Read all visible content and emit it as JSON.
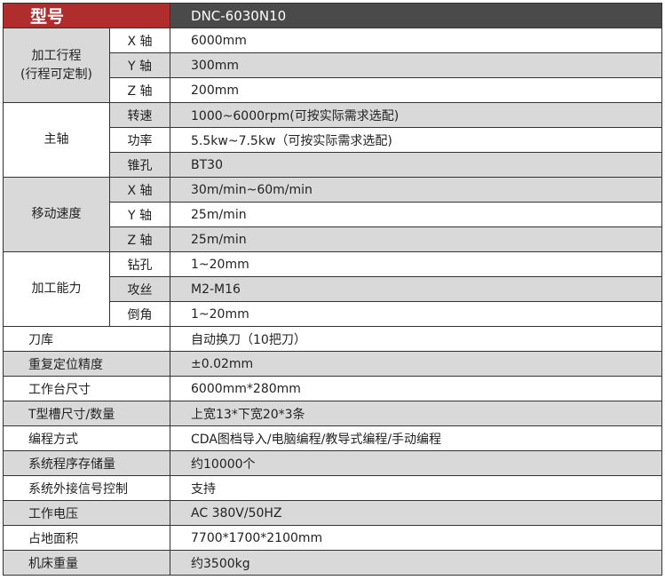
{
  "header": {
    "label": "型号",
    "value": "DNC-6030N10"
  },
  "groups": [
    {
      "label": "加工行程\n(行程可定制)",
      "shaded": true,
      "rows": [
        {
          "label": "X 轴",
          "value": "6000mm",
          "shaded": false
        },
        {
          "label": "Y 轴",
          "value": "300mm",
          "shaded": true
        },
        {
          "label": "Z 轴",
          "value": "200mm",
          "shaded": false
        }
      ]
    },
    {
      "label": "主轴",
      "shaded": false,
      "rows": [
        {
          "label": "转速",
          "value": "1000~6000rpm(可按实际需求选配)",
          "shaded": true
        },
        {
          "label": "功率",
          "value": "5.5kw~7.5kw（可按实际需求选配)",
          "shaded": false
        },
        {
          "label": "锥孔",
          "value": "BT30",
          "shaded": true
        }
      ]
    },
    {
      "label": "移动速度",
      "shaded": true,
      "rows": [
        {
          "label": "X 轴",
          "value": "30m/min~60m/min",
          "shaded": true
        },
        {
          "label": "Y 轴",
          "value": "25m/min",
          "shaded": false
        },
        {
          "label": "Z 轴",
          "value": "25m/min",
          "shaded": true
        }
      ]
    },
    {
      "label": "加工能力",
      "shaded": false,
      "rows": [
        {
          "label": "钻孔",
          "value": "1~20mm",
          "shaded": false
        },
        {
          "label": "攻丝",
          "value": "M2-M16",
          "shaded": true
        },
        {
          "label": "倒角",
          "value": "1~20mm",
          "shaded": false
        }
      ]
    }
  ],
  "specs": [
    {
      "label": "刀库",
      "value": "自动换刀（10把刀）",
      "shaded": false
    },
    {
      "label": "重复定位精度",
      "value": "±0.02mm",
      "shaded": true
    },
    {
      "label": "工作台尺寸",
      "value": "6000mm*280mm",
      "shaded": false
    },
    {
      "label": "T型槽尺寸/数量",
      "value": "上宽13*下宽20*3条",
      "shaded": true
    },
    {
      "label": "编程方式",
      "value": "CDA图档导入/电脑编程/教导式编程/手动编程",
      "shaded": false
    },
    {
      "label": "系统程序存储量",
      "value": "约10000个",
      "shaded": true
    },
    {
      "label": "系统外接信号控制",
      "value": "支持",
      "shaded": false
    },
    {
      "label": "工作电压",
      "value": "AC 380V/50HZ",
      "shaded": true
    },
    {
      "label": "占地面积",
      "value": "7700*1700*2100mm",
      "shaded": false
    },
    {
      "label": "机床重量",
      "value": "约3500kg",
      "shaded": true
    }
  ]
}
